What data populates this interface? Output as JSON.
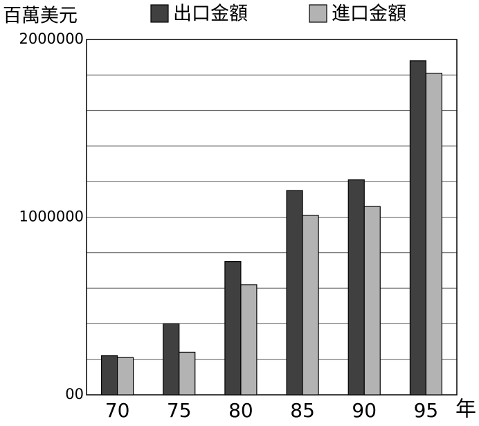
{
  "chart_data": {
    "type": "bar",
    "y_label": "百萬美元",
    "x_label": "年",
    "categories": [
      "70",
      "75",
      "80",
      "85",
      "90",
      "95"
    ],
    "series": [
      {
        "name": "出口金額",
        "color": "#404040",
        "values": [
          220000,
          400000,
          750000,
          1150000,
          1210000,
          1880000
        ]
      },
      {
        "name": "進口金額",
        "color": "#b3b3b3",
        "values": [
          210000,
          240000,
          620000,
          1010000,
          1060000,
          1810000
        ]
      }
    ],
    "ylim": [
      0,
      2000000
    ],
    "yticks": [
      {
        "value": 0,
        "label": "00"
      },
      1000000,
      2000000
    ],
    "minor_yticks": [
      200000,
      400000,
      600000,
      800000,
      1200000,
      1400000,
      1600000,
      1800000
    ],
    "grid": true,
    "legend": "top"
  }
}
